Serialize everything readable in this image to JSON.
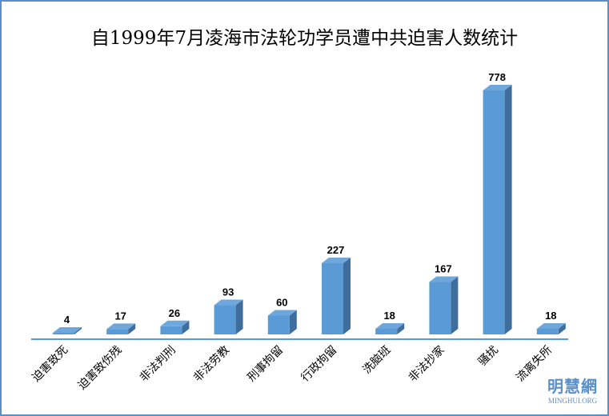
{
  "chart_data": {
    "type": "bar",
    "title": "自1999年7月凌海市法轮功学员遭中共迫害人数统计",
    "categories": [
      "迫害致死",
      "迫害致伤残",
      "非法判刑",
      "非法劳教",
      "刑事拘留",
      "行政拘留",
      "洗脑班",
      "非法抄家",
      "骚扰",
      "流离失所"
    ],
    "values": [
      4,
      17,
      26,
      93,
      60,
      227,
      18,
      167,
      778,
      18
    ],
    "xlabel": "",
    "ylabel": "",
    "ylim": [
      0,
      778
    ],
    "grid": false,
    "bar_color": "#5b9bd5"
  },
  "watermark": {
    "cn": "明慧網",
    "en": "MINGHUI.ORG"
  }
}
